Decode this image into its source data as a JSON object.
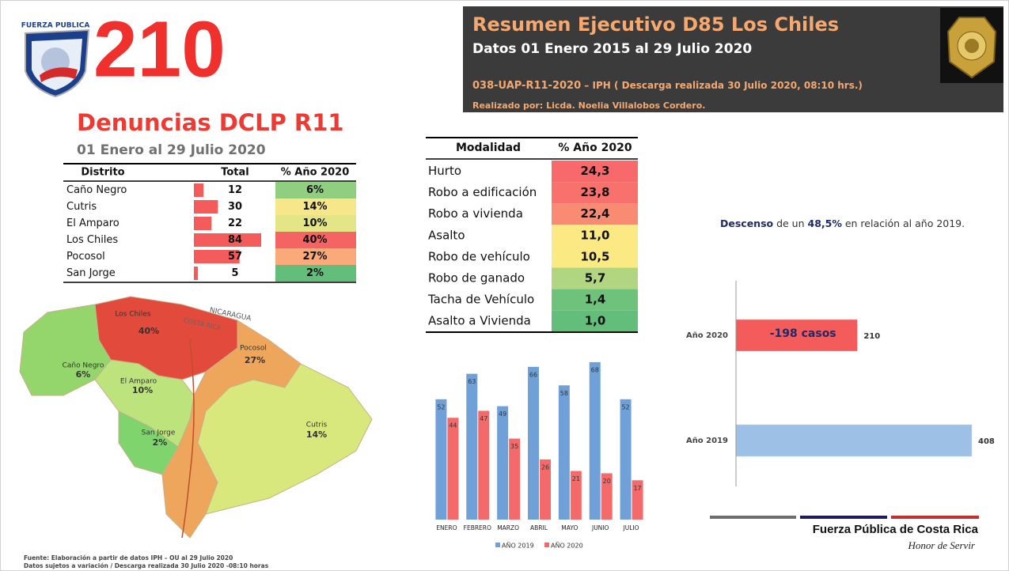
{
  "logo_text": "FUERZA PUBLICA",
  "headline": 210,
  "subtitle": "Denuncias DCLP R11",
  "period": "01 Enero al 29 Julio 2020",
  "header": {
    "title": "Resumen Ejecutivo D85 Los Chiles",
    "subtitle": "Datos 01 Enero 2015 al 29 Julio 2020",
    "code": "038-UAP-R11-2020",
    "download": " – IPH ( Descarga realizada  30 Julio 2020, 08:10 hrs.)",
    "author": "Realizado por: Licda. Noelia Villalobos Cordero."
  },
  "districts": {
    "headers": [
      "Distrito",
      "Total",
      "% Año 2020"
    ],
    "bar_color": "#f45b5b",
    "rows": [
      {
        "name": "Caño Negro",
        "total": 12,
        "share": "6%",
        "color": "#8fcf7f"
      },
      {
        "name": "Cutris",
        "total": 30,
        "share": "14%",
        "color": "#f7e68a"
      },
      {
        "name": "El Amparo",
        "total": 22,
        "share": "10%",
        "color": "#e3e587"
      },
      {
        "name": "Los Chiles",
        "total": 84,
        "share": "40%",
        "color": "#f56464"
      },
      {
        "name": "Pocosol",
        "total": 57,
        "share": "27%",
        "color": "#f9a97a"
      },
      {
        "name": "San Jorge",
        "total": 5,
        "share": "2%",
        "color": "#63be7b"
      }
    ]
  },
  "map": {
    "labels": [
      "NICARAGUA",
      "COSTA RICA"
    ],
    "regions": [
      {
        "name": "Los Chiles",
        "share": "40%"
      },
      {
        "name": "Caño Negro",
        "share": "6%"
      },
      {
        "name": "El Amparo",
        "share": "10%"
      },
      {
        "name": "San Jorge",
        "share": "2%"
      },
      {
        "name": "Pocosol",
        "share": "27%"
      },
      {
        "name": "Cutris",
        "share": "14%"
      }
    ]
  },
  "modalities": {
    "headers": [
      "Modalidad",
      "% Año 2020"
    ],
    "rows": [
      {
        "name": "Hurto",
        "share": "24,3",
        "color": "#f8696b"
      },
      {
        "name": "Robo a edificación",
        "share": "23,8",
        "color": "#f8716c"
      },
      {
        "name": "Robo a vivienda",
        "share": "22,4",
        "color": "#f98b72"
      },
      {
        "name": "Asalto",
        "share": "11,0",
        "color": "#fce983"
      },
      {
        "name": "Robo de vehículo",
        "share": "10,5",
        "color": "#fbe984"
      },
      {
        "name": "Robo de ganado",
        "share": "5,7",
        "color": "#b1d580"
      },
      {
        "name": "Tacha de Vehículo",
        "share": "1,4",
        "color": "#6fc27c"
      },
      {
        "name": "Asalto a Vivienda",
        "share": "1,0",
        "color": "#63be7b"
      }
    ]
  },
  "annotation": {
    "lead": "Descenso",
    "middle": " de un ",
    "highlight": "48,5%",
    "tail": " en relación al año 2019."
  },
  "chart_data": [
    {
      "type": "bar",
      "categories": [
        "ENERO",
        "FEBRERO",
        "MARZO",
        "ABRIL",
        "MAYO",
        "JUNIO",
        "JULIO"
      ],
      "series": [
        {
          "name": "AÑO 2019",
          "color": "#6fa0d8",
          "values": [
            52,
            63,
            49,
            66,
            58,
            68,
            52
          ]
        },
        {
          "name": "AÑO 2020",
          "color": "#f46a6a",
          "values": [
            44,
            47,
            35,
            26,
            21,
            20,
            17
          ]
        }
      ],
      "ylim": [
        0,
        68
      ]
    },
    {
      "type": "barh",
      "categories": [
        "Año 2020",
        "Año 2019"
      ],
      "values": [
        210,
        408
      ],
      "colors": [
        "#f45b5b",
        "#9dc0e6"
      ],
      "annotation": "-198 casos",
      "xlim": [
        0,
        408
      ]
    }
  ],
  "footer": {
    "brand": "Fuerza Pública de Costa Rica",
    "motto": "Honor de Servir",
    "source": "Fuente: Elaboración a partir de datos IPH – OU al 29 Julio 2020",
    "note": "Datos sujetos a variación / Descarga realizada 30 Julio 2020 -08:10 horas"
  }
}
